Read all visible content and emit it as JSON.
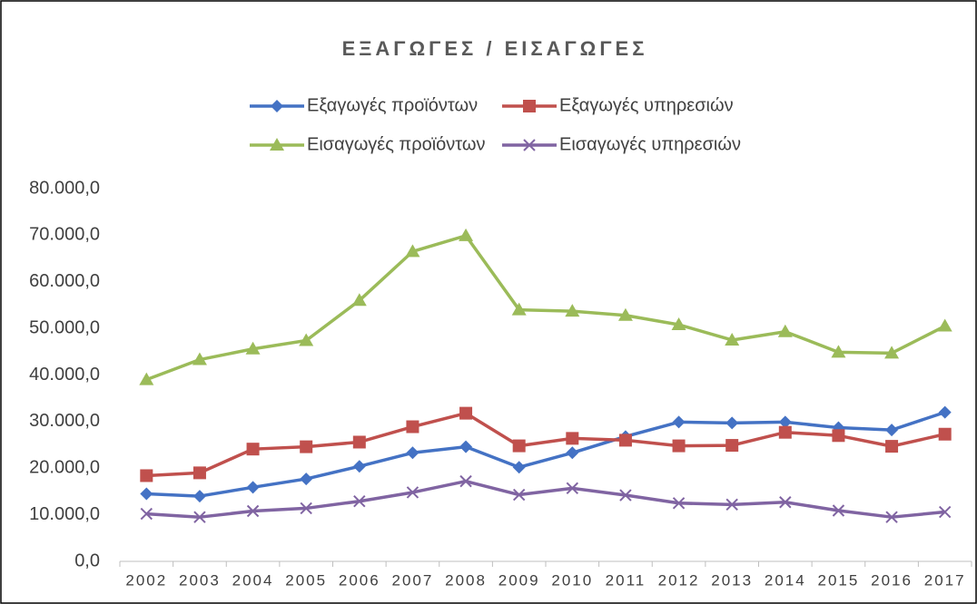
{
  "chart_data": {
    "type": "line",
    "title": "ΕΞΑΓΩΓΕΣ / ΕΙΣΑΓΩΓΕΣ",
    "categories": [
      "2002",
      "2003",
      "2004",
      "2005",
      "2006",
      "2007",
      "2008",
      "2009",
      "2010",
      "2011",
      "2012",
      "2013",
      "2014",
      "2015",
      "2016",
      "2017"
    ],
    "series": [
      {
        "name": "Εξαγωγές προϊόντων",
        "color": "#4472c4",
        "marker": "diamond",
        "values": [
          14500,
          14000,
          15900,
          17700,
          20400,
          23300,
          24600,
          20200,
          23300,
          26800,
          29900,
          29700,
          29900,
          28700,
          28200,
          32000
        ]
      },
      {
        "name": "Εξαγωγές υπηρεσιών",
        "color": "#c0504d",
        "marker": "square",
        "values": [
          18400,
          19000,
          24100,
          24600,
          25600,
          28900,
          31800,
          24800,
          26400,
          26000,
          24800,
          24900,
          27700,
          27000,
          24700,
          27300
        ]
      },
      {
        "name": "Εισαγωγές προϊόντων",
        "color": "#9bbb59",
        "marker": "triangle",
        "values": [
          39000,
          43300,
          45600,
          47400,
          56000,
          66500,
          69900,
          54000,
          53700,
          52800,
          50800,
          47500,
          49300,
          44900,
          44700,
          50500
        ]
      },
      {
        "name": "Εισαγωγές υπηρεσιών",
        "color": "#8064a2",
        "marker": "x",
        "values": [
          10200,
          9500,
          10800,
          11400,
          12900,
          14800,
          17200,
          14300,
          15700,
          14200,
          12500,
          12200,
          12700,
          10900,
          9500,
          10600
        ]
      }
    ],
    "ylim": [
      0,
      80000
    ],
    "yticks": [
      {
        "value": 0,
        "label": "0,0"
      },
      {
        "value": 10000,
        "label": "10.000,0"
      },
      {
        "value": 20000,
        "label": "20.000,0"
      },
      {
        "value": 30000,
        "label": "30.000,0"
      },
      {
        "value": 40000,
        "label": "40.000,0"
      },
      {
        "value": 50000,
        "label": "50.000,0"
      },
      {
        "value": 60000,
        "label": "60.000,0"
      },
      {
        "value": 70000,
        "label": "70.000,0"
      },
      {
        "value": 80000,
        "label": "80.000,0"
      }
    ],
    "grid": false
  }
}
